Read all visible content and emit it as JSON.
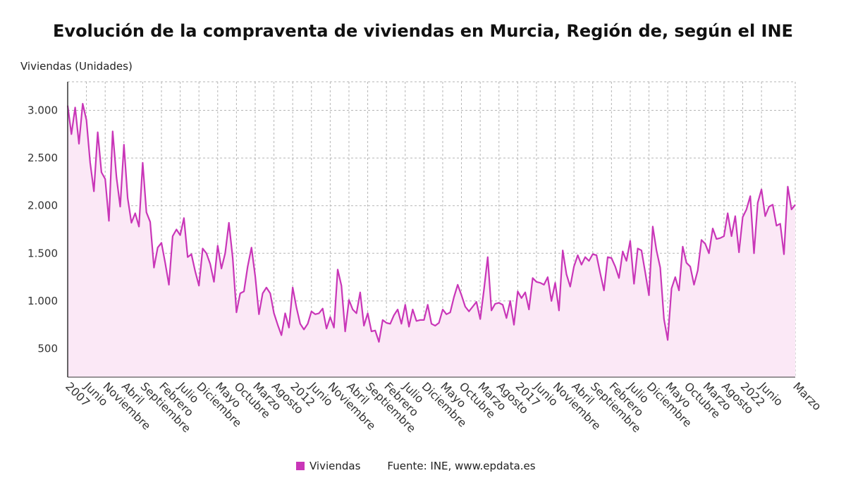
{
  "chart_data": {
    "type": "area",
    "title": "Evolución de la compraventa de viviendas en Murcia, Región de, según el INE",
    "ylabel": "Viviendas (Unidades)",
    "ylim": [
      200,
      3300
    ],
    "yticks": [
      500,
      1000,
      1500,
      2000,
      2500,
      3000
    ],
    "ytick_labels": [
      "500",
      "1.000",
      "1.500",
      "2.000",
      "2.500",
      "3.000"
    ],
    "grid": true,
    "legend_position": "bottom",
    "xtick_labels": [
      "2007",
      "Junio",
      "Noviembre",
      "Abril",
      "Septiembre",
      "Febrero",
      "Julio",
      "Diciembre",
      "Mayo",
      "Octubre",
      "Marzo",
      "Agosto",
      "2012",
      "Junio",
      "Noviembre",
      "Abril",
      "Septiembre",
      "Febrero",
      "Julio",
      "Diciembre",
      "Mayo",
      "Octubre",
      "Marzo",
      "Agosto",
      "2017",
      "Junio",
      "Noviembre",
      "Abril",
      "Septiembre",
      "Febrero",
      "Julio",
      "Diciembre",
      "Mayo",
      "Octubre",
      "Marzo",
      "Agosto",
      "2022",
      "Junio",
      "Marzo"
    ],
    "xtick_months": [
      0,
      5,
      10,
      15,
      20,
      25,
      30,
      35,
      40,
      45,
      50,
      55,
      60,
      65,
      70,
      75,
      80,
      85,
      90,
      95,
      100,
      105,
      110,
      115,
      120,
      125,
      130,
      135,
      140,
      145,
      150,
      155,
      160,
      165,
      170,
      175,
      180,
      185,
      194
    ],
    "series": [
      {
        "name": "Viviendas",
        "color": "#c936b8",
        "fill": "#fbe8f6",
        "values": [
          3050,
          2750,
          3030,
          2650,
          3070,
          2900,
          2450,
          2150,
          2770,
          2350,
          2280,
          1840,
          2780,
          2300,
          1990,
          2640,
          2080,
          1820,
          1920,
          1780,
          2450,
          1930,
          1830,
          1350,
          1560,
          1610,
          1400,
          1170,
          1680,
          1750,
          1690,
          1870,
          1460,
          1490,
          1310,
          1160,
          1550,
          1500,
          1390,
          1200,
          1580,
          1340,
          1500,
          1820,
          1450,
          880,
          1080,
          1100,
          1360,
          1560,
          1260,
          860,
          1080,
          1140,
          1080,
          870,
          750,
          640,
          870,
          720,
          1140,
          930,
          760,
          700,
          760,
          890,
          860,
          870,
          920,
          710,
          830,
          720,
          1330,
          1160,
          680,
          1010,
          910,
          870,
          1090,
          740,
          870,
          680,
          690,
          570,
          800,
          770,
          760,
          850,
          910,
          760,
          960,
          730,
          910,
          790,
          800,
          800,
          960,
          760,
          740,
          770,
          910,
          860,
          880,
          1040,
          1170,
          1060,
          940,
          890,
          940,
          990,
          810,
          1120,
          1460,
          900,
          970,
          980,
          960,
          820,
          1000,
          750,
          1100,
          1030,
          1090,
          910,
          1240,
          1200,
          1190,
          1170,
          1250,
          1000,
          1190,
          900,
          1530,
          1280,
          1150,
          1360,
          1480,
          1380,
          1460,
          1420,
          1490,
          1480,
          1290,
          1110,
          1460,
          1450,
          1360,
          1240,
          1520,
          1420,
          1630,
          1180,
          1550,
          1530,
          1300,
          1060,
          1780,
          1530,
          1350,
          810,
          590,
          1130,
          1250,
          1110,
          1570,
          1400,
          1360,
          1170,
          1320,
          1640,
          1600,
          1500,
          1760,
          1650,
          1660,
          1680,
          1920,
          1680,
          1890,
          1510,
          1880,
          1960,
          2100,
          1500,
          2030,
          2170,
          1890,
          1990,
          2010,
          1790,
          1810,
          1490,
          2200,
          1960,
          2010
        ]
      }
    ]
  },
  "legend": {
    "label": "Viviendas",
    "swatch_color": "#c936b8"
  },
  "source": "Fuente: INE, www.epdata.es"
}
